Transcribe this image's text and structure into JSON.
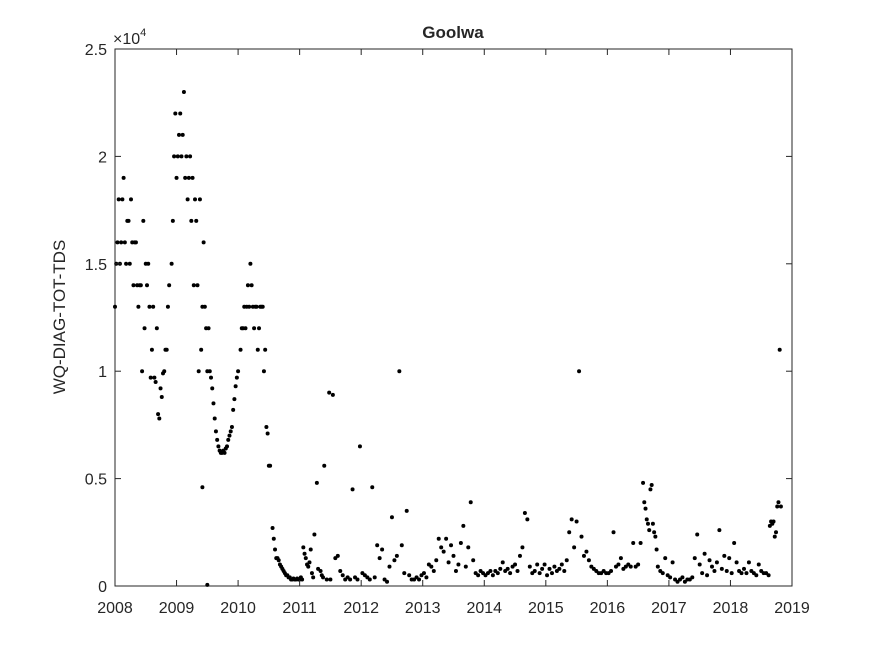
{
  "chart_data": {
    "type": "scatter",
    "title": "Goolwa",
    "xlabel": "",
    "ylabel": "WQ-DIAG-TOT-TDS",
    "y_exponent_label": "×10",
    "y_exponent": "4",
    "xlim": [
      2008,
      2019
    ],
    "ylim": [
      0,
      25000
    ],
    "x_ticks": [
      2008,
      2009,
      2010,
      2011,
      2012,
      2013,
      2014,
      2015,
      2016,
      2017,
      2018,
      2019
    ],
    "x_tick_labels": [
      "2008",
      "2009",
      "2010",
      "2011",
      "2012",
      "2013",
      "2014",
      "2015",
      "2016",
      "2017",
      "2018",
      "2019"
    ],
    "y_ticks": [
      0,
      5000,
      10000,
      15000,
      20000,
      25000
    ],
    "y_tick_labels": [
      "0",
      "0.5",
      "1",
      "1.5",
      "2",
      "2.5"
    ],
    "grid": false,
    "legend": "none",
    "marker_color": "#000000",
    "points": [
      [
        2008.0,
        13000
      ],
      [
        2008.02,
        15000
      ],
      [
        2008.04,
        16000
      ],
      [
        2008.06,
        18000
      ],
      [
        2008.08,
        15000
      ],
      [
        2008.1,
        16000
      ],
      [
        2008.12,
        18000
      ],
      [
        2008.14,
        19000
      ],
      [
        2008.16,
        16000
      ],
      [
        2008.18,
        15000
      ],
      [
        2008.2,
        17000
      ],
      [
        2008.22,
        17000
      ],
      [
        2008.24,
        15000
      ],
      [
        2008.26,
        18000
      ],
      [
        2008.28,
        16000
      ],
      [
        2008.3,
        14000
      ],
      [
        2008.32,
        16000
      ],
      [
        2008.34,
        16000
      ],
      [
        2008.36,
        14000
      ],
      [
        2008.38,
        13000
      ],
      [
        2008.4,
        14000
      ],
      [
        2008.42,
        14000
      ],
      [
        2008.44,
        10000
      ],
      [
        2008.46,
        17000
      ],
      [
        2008.48,
        12000
      ],
      [
        2008.5,
        15000
      ],
      [
        2008.52,
        14000
      ],
      [
        2008.54,
        15000
      ],
      [
        2008.56,
        13000
      ],
      [
        2008.58,
        9700
      ],
      [
        2008.6,
        11000
      ],
      [
        2008.62,
        13000
      ],
      [
        2008.64,
        9700
      ],
      [
        2008.66,
        9500
      ],
      [
        2008.68,
        12000
      ],
      [
        2008.7,
        8000
      ],
      [
        2008.72,
        7800
      ],
      [
        2008.74,
        9200
      ],
      [
        2008.76,
        8800
      ],
      [
        2008.78,
        9900
      ],
      [
        2008.8,
        10000
      ],
      [
        2008.82,
        11000
      ],
      [
        2008.84,
        11000
      ],
      [
        2008.86,
        13000
      ],
      [
        2008.88,
        14000
      ],
      [
        2008.92,
        15000
      ],
      [
        2008.94,
        17000
      ],
      [
        2008.96,
        20000
      ],
      [
        2008.98,
        22000
      ],
      [
        2009.0,
        19000
      ],
      [
        2009.02,
        20000
      ],
      [
        2009.04,
        21000
      ],
      [
        2009.06,
        22000
      ],
      [
        2009.08,
        20000
      ],
      [
        2009.1,
        21000
      ],
      [
        2009.12,
        23000
      ],
      [
        2009.14,
        19000
      ],
      [
        2009.16,
        20000
      ],
      [
        2009.18,
        18000
      ],
      [
        2009.2,
        19000
      ],
      [
        2009.22,
        20000
      ],
      [
        2009.24,
        17000
      ],
      [
        2009.26,
        19000
      ],
      [
        2009.28,
        14000
      ],
      [
        2009.3,
        18000
      ],
      [
        2009.32,
        17000
      ],
      [
        2009.34,
        14000
      ],
      [
        2009.36,
        10000
      ],
      [
        2009.38,
        18000
      ],
      [
        2009.4,
        11000
      ],
      [
        2009.42,
        13000
      ],
      [
        2009.44,
        16000
      ],
      [
        2009.46,
        13000
      ],
      [
        2009.48,
        12000
      ],
      [
        2009.5,
        10000
      ],
      [
        2009.52,
        12000
      ],
      [
        2009.54,
        10000
      ],
      [
        2009.56,
        9700
      ],
      [
        2009.58,
        9200
      ],
      [
        2009.6,
        8500
      ],
      [
        2009.62,
        7800
      ],
      [
        2009.64,
        7200
      ],
      [
        2009.66,
        6800
      ],
      [
        2009.68,
        6500
      ],
      [
        2009.7,
        6300
      ],
      [
        2009.72,
        6200
      ],
      [
        2009.74,
        6200
      ],
      [
        2009.76,
        6300
      ],
      [
        2009.78,
        6200
      ],
      [
        2009.8,
        6400
      ],
      [
        2009.82,
        6500
      ],
      [
        2009.84,
        6800
      ],
      [
        2009.86,
        7000
      ],
      [
        2009.88,
        7200
      ],
      [
        2009.9,
        7400
      ],
      [
        2009.92,
        8200
      ],
      [
        2009.94,
        8700
      ],
      [
        2009.96,
        9300
      ],
      [
        2009.98,
        9700
      ],
      [
        2010.0,
        10000
      ],
      [
        2009.42,
        4600
      ],
      [
        2009.5,
        50
      ],
      [
        2010.04,
        11000
      ],
      [
        2010.06,
        12000
      ],
      [
        2010.08,
        12000
      ],
      [
        2010.1,
        13000
      ],
      [
        2010.12,
        12000
      ],
      [
        2010.14,
        13000
      ],
      [
        2010.16,
        14000
      ],
      [
        2010.18,
        13000
      ],
      [
        2010.2,
        15000
      ],
      [
        2010.22,
        14000
      ],
      [
        2010.24,
        13000
      ],
      [
        2010.26,
        12000
      ],
      [
        2010.28,
        13000
      ],
      [
        2010.3,
        13000
      ],
      [
        2010.32,
        11000
      ],
      [
        2010.34,
        12000
      ],
      [
        2010.36,
        13000
      ],
      [
        2010.38,
        13000
      ],
      [
        2010.4,
        13000
      ],
      [
        2010.42,
        10000
      ],
      [
        2010.44,
        11000
      ],
      [
        2010.46,
        7400
      ],
      [
        2010.48,
        7100
      ],
      [
        2010.5,
        5600
      ],
      [
        2010.52,
        5600
      ],
      [
        2010.56,
        2700
      ],
      [
        2010.58,
        2200
      ],
      [
        2010.6,
        1700
      ],
      [
        2010.62,
        1300
      ],
      [
        2010.64,
        1300
      ],
      [
        2010.66,
        1200
      ],
      [
        2010.68,
        1000
      ],
      [
        2010.7,
        900
      ],
      [
        2010.72,
        800
      ],
      [
        2010.74,
        700
      ],
      [
        2010.76,
        600
      ],
      [
        2010.78,
        500
      ],
      [
        2010.8,
        500
      ],
      [
        2010.82,
        400
      ],
      [
        2010.84,
        400
      ],
      [
        2010.86,
        300
      ],
      [
        2010.88,
        300
      ],
      [
        2010.9,
        350
      ],
      [
        2010.92,
        300
      ],
      [
        2010.94,
        300
      ],
      [
        2010.96,
        350
      ],
      [
        2010.98,
        300
      ],
      [
        2011.0,
        300
      ],
      [
        2011.02,
        400
      ],
      [
        2011.04,
        300
      ],
      [
        2011.06,
        1800
      ],
      [
        2011.08,
        1500
      ],
      [
        2011.1,
        1300
      ],
      [
        2011.12,
        1000
      ],
      [
        2011.14,
        900
      ],
      [
        2011.16,
        1100
      ],
      [
        2011.18,
        1700
      ],
      [
        2011.2,
        600
      ],
      [
        2011.22,
        400
      ],
      [
        2011.24,
        2400
      ],
      [
        2011.28,
        4800
      ],
      [
        2011.3,
        800
      ],
      [
        2011.34,
        700
      ],
      [
        2011.36,
        500
      ],
      [
        2011.38,
        400
      ],
      [
        2011.4,
        5600
      ],
      [
        2011.44,
        300
      ],
      [
        2011.48,
        9000
      ],
      [
        2011.5,
        300
      ],
      [
        2011.54,
        8900
      ],
      [
        2011.58,
        1300
      ],
      [
        2011.62,
        1400
      ],
      [
        2011.66,
        700
      ],
      [
        2011.7,
        500
      ],
      [
        2011.74,
        300
      ],
      [
        2011.78,
        400
      ],
      [
        2011.82,
        300
      ],
      [
        2011.86,
        4500
      ],
      [
        2011.9,
        400
      ],
      [
        2011.94,
        300
      ],
      [
        2011.98,
        6500
      ],
      [
        2012.02,
        600
      ],
      [
        2012.06,
        500
      ],
      [
        2012.1,
        400
      ],
      [
        2012.14,
        300
      ],
      [
        2012.18,
        4600
      ],
      [
        2012.22,
        400
      ],
      [
        2012.26,
        1900
      ],
      [
        2012.3,
        1300
      ],
      [
        2012.34,
        1700
      ],
      [
        2012.38,
        300
      ],
      [
        2012.42,
        200
      ],
      [
        2012.46,
        900
      ],
      [
        2012.5,
        3200
      ],
      [
        2012.54,
        1200
      ],
      [
        2012.58,
        1400
      ],
      [
        2012.62,
        10000
      ],
      [
        2012.66,
        1900
      ],
      [
        2012.7,
        600
      ],
      [
        2012.74,
        3500
      ],
      [
        2012.78,
        500
      ],
      [
        2012.82,
        300
      ],
      [
        2012.86,
        300
      ],
      [
        2012.9,
        400
      ],
      [
        2012.94,
        300
      ],
      [
        2012.98,
        500
      ],
      [
        2013.02,
        600
      ],
      [
        2013.06,
        400
      ],
      [
        2013.1,
        1000
      ],
      [
        2013.14,
        900
      ],
      [
        2013.18,
        700
      ],
      [
        2013.22,
        1200
      ],
      [
        2013.26,
        2200
      ],
      [
        2013.3,
        1800
      ],
      [
        2013.34,
        1600
      ],
      [
        2013.38,
        2200
      ],
      [
        2013.42,
        1100
      ],
      [
        2013.46,
        1900
      ],
      [
        2013.5,
        1400
      ],
      [
        2013.54,
        700
      ],
      [
        2013.58,
        1000
      ],
      [
        2013.62,
        2000
      ],
      [
        2013.66,
        2800
      ],
      [
        2013.7,
        900
      ],
      [
        2013.74,
        1800
      ],
      [
        2013.78,
        3900
      ],
      [
        2013.82,
        1200
      ],
      [
        2013.86,
        600
      ],
      [
        2013.9,
        500
      ],
      [
        2013.94,
        700
      ],
      [
        2013.98,
        600
      ],
      [
        2014.02,
        500
      ],
      [
        2014.06,
        600
      ],
      [
        2014.1,
        700
      ],
      [
        2014.14,
        500
      ],
      [
        2014.18,
        700
      ],
      [
        2014.22,
        600
      ],
      [
        2014.26,
        800
      ],
      [
        2014.3,
        1100
      ],
      [
        2014.34,
        700
      ],
      [
        2014.38,
        800
      ],
      [
        2014.42,
        600
      ],
      [
        2014.46,
        900
      ],
      [
        2014.5,
        1000
      ],
      [
        2014.54,
        700
      ],
      [
        2014.58,
        1400
      ],
      [
        2014.62,
        1800
      ],
      [
        2014.66,
        3400
      ],
      [
        2014.7,
        3100
      ],
      [
        2014.74,
        900
      ],
      [
        2014.78,
        600
      ],
      [
        2014.82,
        700
      ],
      [
        2014.86,
        1000
      ],
      [
        2014.9,
        600
      ],
      [
        2014.94,
        800
      ],
      [
        2014.98,
        1000
      ],
      [
        2015.02,
        500
      ],
      [
        2015.06,
        800
      ],
      [
        2015.1,
        600
      ],
      [
        2015.14,
        900
      ],
      [
        2015.18,
        700
      ],
      [
        2015.22,
        800
      ],
      [
        2015.26,
        1000
      ],
      [
        2015.3,
        700
      ],
      [
        2015.34,
        1200
      ],
      [
        2015.38,
        2500
      ],
      [
        2015.42,
        3100
      ],
      [
        2015.46,
        1800
      ],
      [
        2015.5,
        3000
      ],
      [
        2015.54,
        10000
      ],
      [
        2015.58,
        2300
      ],
      [
        2015.62,
        1400
      ],
      [
        2015.66,
        1600
      ],
      [
        2015.7,
        1200
      ],
      [
        2015.74,
        900
      ],
      [
        2015.78,
        800
      ],
      [
        2015.82,
        700
      ],
      [
        2015.86,
        600
      ],
      [
        2015.9,
        600
      ],
      [
        2015.94,
        700
      ],
      [
        2015.98,
        600
      ],
      [
        2016.02,
        600
      ],
      [
        2016.06,
        700
      ],
      [
        2016.1,
        2500
      ],
      [
        2016.14,
        900
      ],
      [
        2016.18,
        1000
      ],
      [
        2016.22,
        1300
      ],
      [
        2016.26,
        800
      ],
      [
        2016.3,
        900
      ],
      [
        2016.34,
        1000
      ],
      [
        2016.38,
        900
      ],
      [
        2016.42,
        2000
      ],
      [
        2016.46,
        900
      ],
      [
        2016.5,
        1000
      ],
      [
        2016.54,
        2000
      ],
      [
        2016.58,
        4800
      ],
      [
        2016.6,
        3900
      ],
      [
        2016.62,
        3600
      ],
      [
        2016.64,
        3100
      ],
      [
        2016.66,
        2900
      ],
      [
        2016.68,
        2600
      ],
      [
        2016.7,
        4500
      ],
      [
        2016.72,
        4700
      ],
      [
        2016.74,
        2900
      ],
      [
        2016.76,
        2500
      ],
      [
        2016.78,
        2300
      ],
      [
        2016.8,
        1700
      ],
      [
        2016.82,
        900
      ],
      [
        2016.86,
        700
      ],
      [
        2016.9,
        600
      ],
      [
        2016.94,
        1300
      ],
      [
        2016.98,
        500
      ],
      [
        2017.02,
        400
      ],
      [
        2017.06,
        1100
      ],
      [
        2017.1,
        300
      ],
      [
        2017.14,
        200
      ],
      [
        2017.18,
        300
      ],
      [
        2017.22,
        400
      ],
      [
        2017.26,
        200
      ],
      [
        2017.3,
        300
      ],
      [
        2017.34,
        300
      ],
      [
        2017.38,
        400
      ],
      [
        2017.42,
        1300
      ],
      [
        2017.46,
        2400
      ],
      [
        2017.5,
        1000
      ],
      [
        2017.54,
        600
      ],
      [
        2017.58,
        1500
      ],
      [
        2017.62,
        500
      ],
      [
        2017.66,
        1200
      ],
      [
        2017.7,
        900
      ],
      [
        2017.74,
        700
      ],
      [
        2017.78,
        1100
      ],
      [
        2017.82,
        2600
      ],
      [
        2017.86,
        800
      ],
      [
        2017.9,
        1400
      ],
      [
        2017.94,
        700
      ],
      [
        2017.98,
        1300
      ],
      [
        2018.02,
        600
      ],
      [
        2018.06,
        2000
      ],
      [
        2018.1,
        1100
      ],
      [
        2018.14,
        700
      ],
      [
        2018.18,
        600
      ],
      [
        2018.22,
        800
      ],
      [
        2018.26,
        600
      ],
      [
        2018.3,
        1100
      ],
      [
        2018.34,
        700
      ],
      [
        2018.38,
        600
      ],
      [
        2018.42,
        500
      ],
      [
        2018.46,
        1000
      ],
      [
        2018.5,
        700
      ],
      [
        2018.54,
        600
      ],
      [
        2018.58,
        600
      ],
      [
        2018.62,
        500
      ],
      [
        2018.64,
        2800
      ],
      [
        2018.66,
        3000
      ],
      [
        2018.68,
        2900
      ],
      [
        2018.7,
        3000
      ],
      [
        2018.72,
        2300
      ],
      [
        2018.74,
        2500
      ],
      [
        2018.76,
        3700
      ],
      [
        2018.78,
        3900
      ],
      [
        2018.8,
        11000
      ],
      [
        2018.82,
        3700
      ]
    ]
  }
}
